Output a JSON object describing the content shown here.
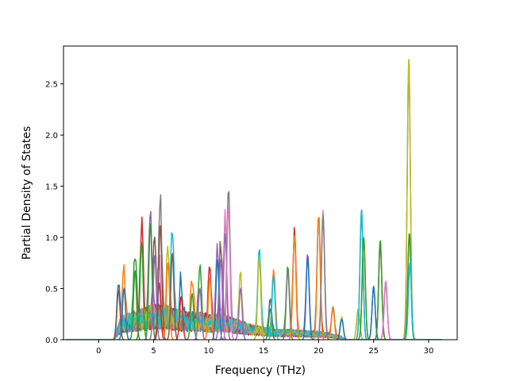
{
  "chart_data": {
    "type": "line",
    "title": "",
    "xlabel": "Frequency (THz)",
    "ylabel": "Partial Density of States",
    "xlim": [
      -3.2,
      32.6
    ],
    "ylim": [
      0.0,
      2.87
    ],
    "xticks": [
      0,
      5,
      10,
      15,
      20,
      25,
      30
    ],
    "yticks": [
      0.0,
      0.5,
      1.0,
      1.5,
      2.0,
      2.5
    ],
    "xtick_labels": [
      "0",
      "5",
      "10",
      "15",
      "20",
      "25",
      "30"
    ],
    "ytick_labels": [
      "0.0",
      "0.5",
      "1.0",
      "1.5",
      "2.0",
      "2.5"
    ],
    "grid": false,
    "legend": false,
    "x_domain": [
      -3.0,
      31.2
    ],
    "series_count": 20,
    "colors": [
      "#1f77b4",
      "#ff7f0e",
      "#2ca02c",
      "#d62728",
      "#9467bd",
      "#8c564b",
      "#e377c2",
      "#7f7f7f",
      "#bcbd22",
      "#17becf"
    ],
    "noise_band": {
      "x": [
        1.4,
        2.0,
        3.0,
        4.0,
        5.0,
        6.0,
        7.0,
        8.0,
        9.0,
        10.0,
        11.0,
        12.0,
        13.0,
        14.0,
        15.0,
        16.0,
        17.0,
        18.0,
        19.0,
        20.0,
        21.0,
        22.0,
        22.5
      ],
      "y": [
        0.0,
        0.18,
        0.22,
        0.25,
        0.28,
        0.28,
        0.25,
        0.22,
        0.22,
        0.2,
        0.2,
        0.18,
        0.15,
        0.12,
        0.1,
        0.08,
        0.08,
        0.08,
        0.07,
        0.07,
        0.05,
        0.03,
        0.0
      ]
    },
    "peaks": [
      {
        "x": 1.8,
        "y": 0.48,
        "color": "#8c564b"
      },
      {
        "x": 2.3,
        "y": 0.5,
        "color": "#1f77b4"
      },
      {
        "x": 3.3,
        "y": 0.67,
        "color": "#2ca02c"
      },
      {
        "x": 3.9,
        "y": 0.94,
        "color": "#2ca02c"
      },
      {
        "x": 4.7,
        "y": 1.14,
        "color": "#2ca02c"
      },
      {
        "x": 5.1,
        "y": 0.82,
        "color": "#9467bd"
      },
      {
        "x": 5.5,
        "y": 0.55,
        "color": "#d62728"
      },
      {
        "x": 5.6,
        "y": 1.12,
        "color": "#8c564b"
      },
      {
        "x": 6.3,
        "y": 0.75,
        "color": "#ff7f0e"
      },
      {
        "x": 6.7,
        "y": 0.84,
        "color": "#8c564b"
      },
      {
        "x": 7.5,
        "y": 0.42,
        "color": "#d62728"
      },
      {
        "x": 8.5,
        "y": 0.45,
        "color": "#2ca02c"
      },
      {
        "x": 9.2,
        "y": 0.5,
        "color": "#9467bd"
      },
      {
        "x": 10.1,
        "y": 0.6,
        "color": "#ff7f0e"
      },
      {
        "x": 10.8,
        "y": 0.78,
        "color": "#1f77b4"
      },
      {
        "x": 11.1,
        "y": 0.78,
        "color": "#9467bd"
      },
      {
        "x": 11.5,
        "y": 1.04,
        "color": "#9467bd"
      },
      {
        "x": 11.8,
        "y": 1.31,
        "color": "#e377c2"
      },
      {
        "x": 12.9,
        "y": 0.5,
        "color": "#9467bd"
      },
      {
        "x": 14.6,
        "y": 0.79,
        "color": "#bcbd22"
      },
      {
        "x": 15.6,
        "y": 0.3,
        "color": "#2ca02c"
      },
      {
        "x": 15.9,
        "y": 0.62,
        "color": "#17becf"
      },
      {
        "x": 17.2,
        "y": 0.67,
        "color": "#7f7f7f"
      },
      {
        "x": 17.8,
        "y": 1.02,
        "color": "#ff7f0e"
      },
      {
        "x": 19.0,
        "y": 0.8,
        "color": "#1f77b4"
      },
      {
        "x": 20.0,
        "y": 1.2,
        "color": "#ff7f0e"
      },
      {
        "x": 20.4,
        "y": 1.22,
        "color": "#7f7f7f"
      },
      {
        "x": 21.3,
        "y": 0.3,
        "color": "#ff7f0e"
      },
      {
        "x": 22.1,
        "y": 0.2,
        "color": "#1f77b4"
      },
      {
        "x": 23.6,
        "y": 0.3,
        "color": "#bcbd22"
      },
      {
        "x": 23.9,
        "y": 1.27,
        "color": "#17becf"
      },
      {
        "x": 24.1,
        "y": 1.0,
        "color": "#2ca02c"
      },
      {
        "x": 25.0,
        "y": 0.52,
        "color": "#1f77b4"
      },
      {
        "x": 25.6,
        "y": 0.97,
        "color": "#2ca02c"
      },
      {
        "x": 26.1,
        "y": 0.57,
        "color": "#e377c2"
      },
      {
        "x": 28.2,
        "y": 2.75,
        "color": "#bcbd22"
      },
      {
        "x": 28.25,
        "y": 1.04,
        "color": "#2ca02c"
      },
      {
        "x": 28.3,
        "y": 0.75,
        "color": "#17becf"
      }
    ]
  }
}
